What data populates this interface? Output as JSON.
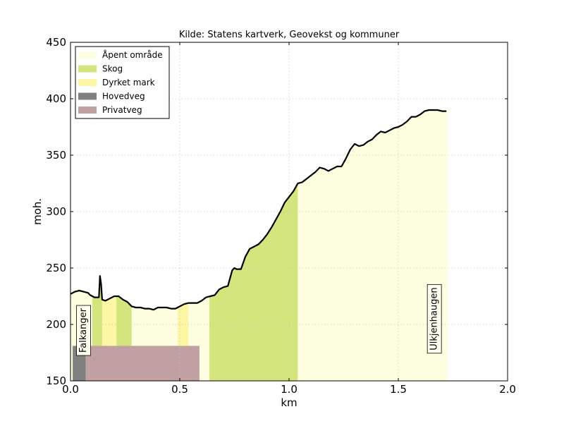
{
  "chart_data": {
    "type": "area",
    "title": "Kilde: Statens kartverk, Geovekst og kommuner",
    "xlabel": "km",
    "ylabel": "moh.",
    "xlim": [
      0,
      2
    ],
    "ylim": [
      150,
      450
    ],
    "xticks": [
      0,
      0.5,
      1,
      1.5,
      2
    ],
    "xtick_labels": [
      "0.0",
      "0.5",
      "1.0",
      "1.5",
      "2.0"
    ],
    "yticks": [
      150,
      200,
      250,
      300,
      350,
      400,
      450
    ],
    "ytick_labels": [
      "150",
      "200",
      "250",
      "300",
      "350",
      "400",
      "450"
    ],
    "grid": true,
    "legend_position": "top-left",
    "legend": [
      {
        "label": "Åpent område",
        "color": "#fdfde0"
      },
      {
        "label": "Skog",
        "color": "#d3e57c"
      },
      {
        "label": "Dyrket mark",
        "color": "#fdf6a4"
      },
      {
        "label": "Hovedveg",
        "color": "#808080"
      },
      {
        "label": "Privatveg",
        "color": "#c0a0a0"
      }
    ],
    "land_cover": [
      {
        "type": "Åpent område",
        "from": 0.0,
        "to": 0.1
      },
      {
        "type": "Skog",
        "from": 0.1,
        "to": 0.145
      },
      {
        "type": "Dyrket mark",
        "from": 0.145,
        "to": 0.21
      },
      {
        "type": "Skog",
        "from": 0.21,
        "to": 0.28
      },
      {
        "type": "Åpent område",
        "from": 0.28,
        "to": 0.49
      },
      {
        "type": "Dyrket mark",
        "from": 0.49,
        "to": 0.54
      },
      {
        "type": "Åpent område",
        "from": 0.54,
        "to": 0.635
      },
      {
        "type": "Skog",
        "from": 0.635,
        "to": 1.04
      },
      {
        "type": "Åpent område",
        "from": 1.04,
        "to": 1.725
      }
    ],
    "roads": [
      {
        "type": "Hovedveg",
        "from": 0.01,
        "to": 0.07,
        "top": 181
      },
      {
        "type": "Privatveg",
        "from": 0.07,
        "to": 0.59,
        "top": 181
      }
    ],
    "places": [
      {
        "name": "Falkanger",
        "x": 0.06,
        "y": 175
      },
      {
        "name": "Ulkjenhaugen",
        "x": 1.665,
        "y": 177
      }
    ],
    "profile": {
      "x": [
        0.0,
        0.02,
        0.04,
        0.06,
        0.08,
        0.09,
        0.11,
        0.13,
        0.135,
        0.14,
        0.145,
        0.16,
        0.18,
        0.2,
        0.22,
        0.24,
        0.26,
        0.28,
        0.3,
        0.32,
        0.34,
        0.36,
        0.38,
        0.4,
        0.42,
        0.44,
        0.46,
        0.48,
        0.5,
        0.52,
        0.54,
        0.56,
        0.58,
        0.6,
        0.62,
        0.64,
        0.66,
        0.68,
        0.7,
        0.72,
        0.74,
        0.75,
        0.76,
        0.78,
        0.8,
        0.82,
        0.84,
        0.86,
        0.88,
        0.9,
        0.92,
        0.94,
        0.96,
        0.98,
        1.0,
        1.02,
        1.04,
        1.06,
        1.08,
        1.1,
        1.12,
        1.14,
        1.16,
        1.18,
        1.2,
        1.22,
        1.24,
        1.26,
        1.28,
        1.3,
        1.32,
        1.34,
        1.36,
        1.38,
        1.4,
        1.42,
        1.44,
        1.46,
        1.48,
        1.5,
        1.52,
        1.54,
        1.56,
        1.58,
        1.6,
        1.62,
        1.64,
        1.66,
        1.68,
        1.7,
        1.72
      ],
      "y": [
        227,
        229,
        230,
        229,
        228,
        226,
        224,
        224,
        243,
        236,
        222,
        221,
        223,
        225,
        225,
        222,
        220,
        216,
        215,
        215,
        214,
        214,
        213,
        215,
        215,
        215,
        214,
        214,
        216,
        218,
        219,
        219,
        219,
        221,
        224,
        225,
        226,
        231,
        233,
        234,
        248,
        250,
        249,
        249,
        260,
        267,
        269,
        271,
        275,
        280,
        286,
        293,
        300,
        308,
        313,
        318,
        325,
        326,
        329,
        332,
        335,
        339,
        338,
        336,
        338,
        340,
        340,
        347,
        355,
        360,
        358,
        359,
        362,
        364,
        368,
        371,
        370,
        372,
        374,
        375,
        377,
        380,
        384,
        384,
        386,
        389,
        390,
        390,
        390,
        389,
        389
      ]
    }
  }
}
